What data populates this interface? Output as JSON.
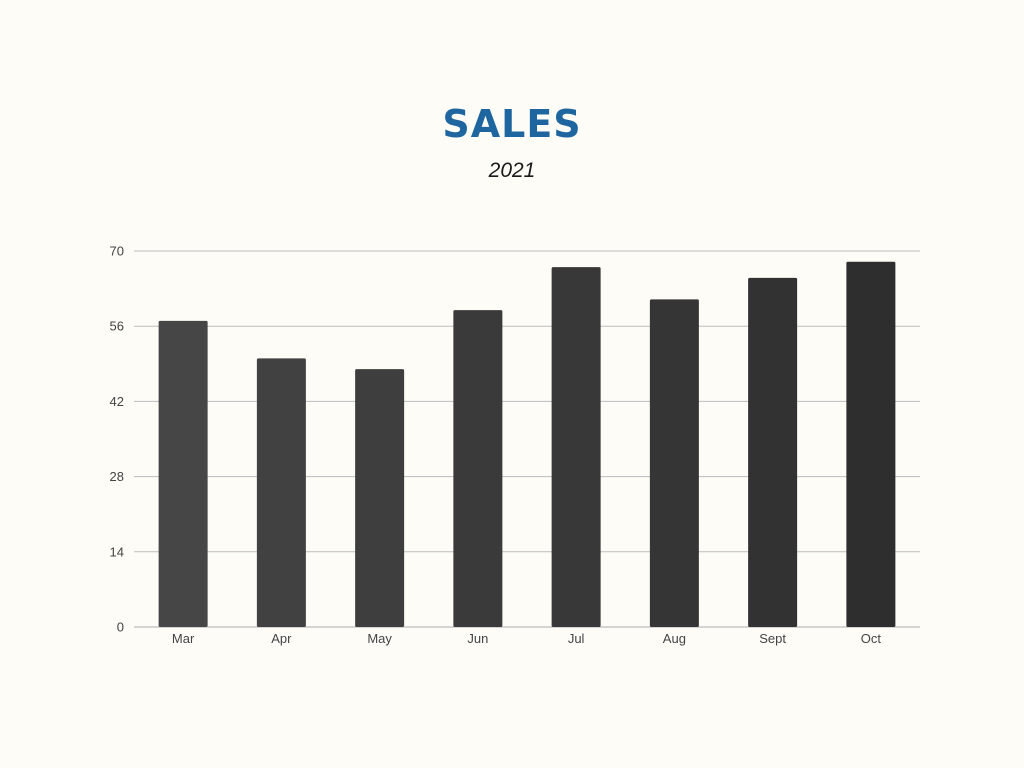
{
  "chart_data": {
    "type": "bar",
    "title": "SALES",
    "subtitle": "2021",
    "xlabel": "",
    "ylabel": "",
    "categories": [
      "Mar",
      "Apr",
      "May",
      "Jun",
      "Jul",
      "Aug",
      "Sept",
      "Oct"
    ],
    "values": [
      57,
      50,
      48,
      59,
      67,
      61,
      65,
      68
    ],
    "ylim": [
      0,
      70
    ],
    "yticks": [
      "0",
      "14",
      "28",
      "42",
      "56",
      "70"
    ],
    "grid": true,
    "bar_colors": [
      "#464646",
      "#414141",
      "#3e3e3e",
      "#3a3a3a",
      "#383838",
      "#353535",
      "#323232",
      "#2e2e2e"
    ],
    "title_color": "#1f66a0",
    "grid_color": "#bcbcbc"
  }
}
